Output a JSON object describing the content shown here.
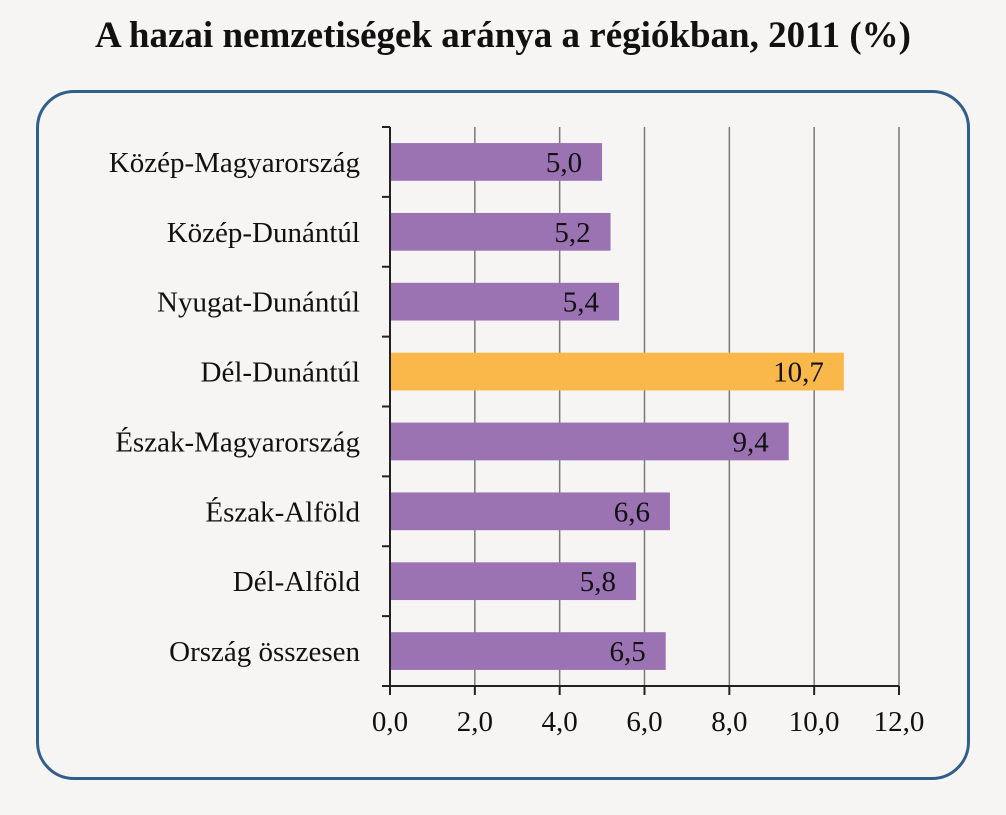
{
  "title": "A hazai nemzetiségek aránya a régiókban, 2011 (%)",
  "chart_data": {
    "type": "bar",
    "orientation": "horizontal",
    "categories": [
      "Közép-Magyarország",
      "Közép-Dunántúl",
      "Nyugat-Dunántúl",
      "Dél-Dunántúl",
      "Észak-Magyarország",
      "Észak-Alföld",
      "Dél-Alföld",
      "Ország összesen"
    ],
    "values": [
      5.0,
      5.2,
      5.4,
      10.7,
      9.4,
      6.6,
      5.8,
      6.5
    ],
    "value_labels": [
      "5,0",
      "5,2",
      "5,4",
      "10,7",
      "9,4",
      "6,6",
      "5,8",
      "6,5"
    ],
    "xlim": [
      0,
      12
    ],
    "xticks": [
      0,
      2,
      4,
      6,
      8,
      10,
      12
    ],
    "xtick_labels": [
      "0,0",
      "2,0",
      "4,0",
      "6,0",
      "8,0",
      "10,0",
      "12,0"
    ],
    "grid": "vertical",
    "colors": {
      "default": "#9b73b3",
      "highlight": "#fbb84a"
    },
    "highlight_index": 3
  }
}
